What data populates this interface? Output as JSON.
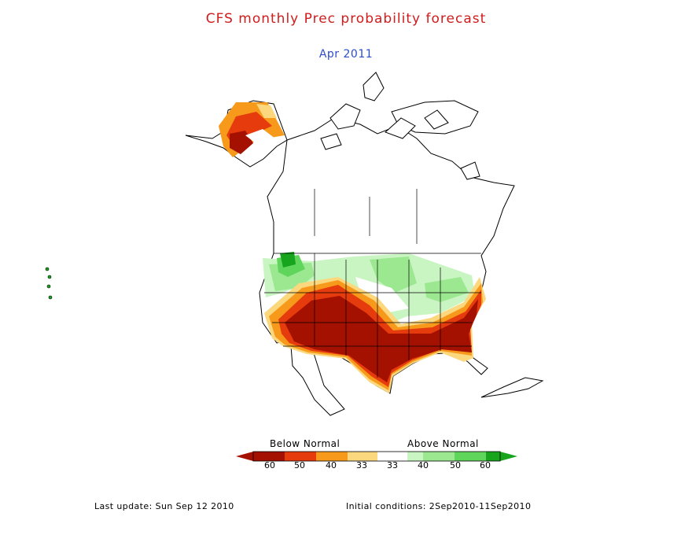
{
  "title": "CFS monthly Prec probability forecast",
  "subtitle": "Apr 2011",
  "legend": {
    "below_label": "Below Normal",
    "above_label": "Above Normal",
    "ticks": [
      "60",
      "50",
      "40",
      "33",
      "33",
      "40",
      "50",
      "60"
    ],
    "colors": {
      "below_60": "#a51100",
      "below_50": "#e63b0c",
      "below_40": "#f79a1c",
      "below_33": "#fbd77e",
      "neutral": "#ffffff",
      "above_33": "#c9f5c2",
      "above_40": "#9ce891",
      "above_50": "#5fd65b",
      "above_60": "#17a51e"
    }
  },
  "footer": {
    "last_update": "Last update: Sun Sep 12 2010",
    "initial_conditions": "Initial conditions: 2Sep2010-11Sep2010"
  }
}
